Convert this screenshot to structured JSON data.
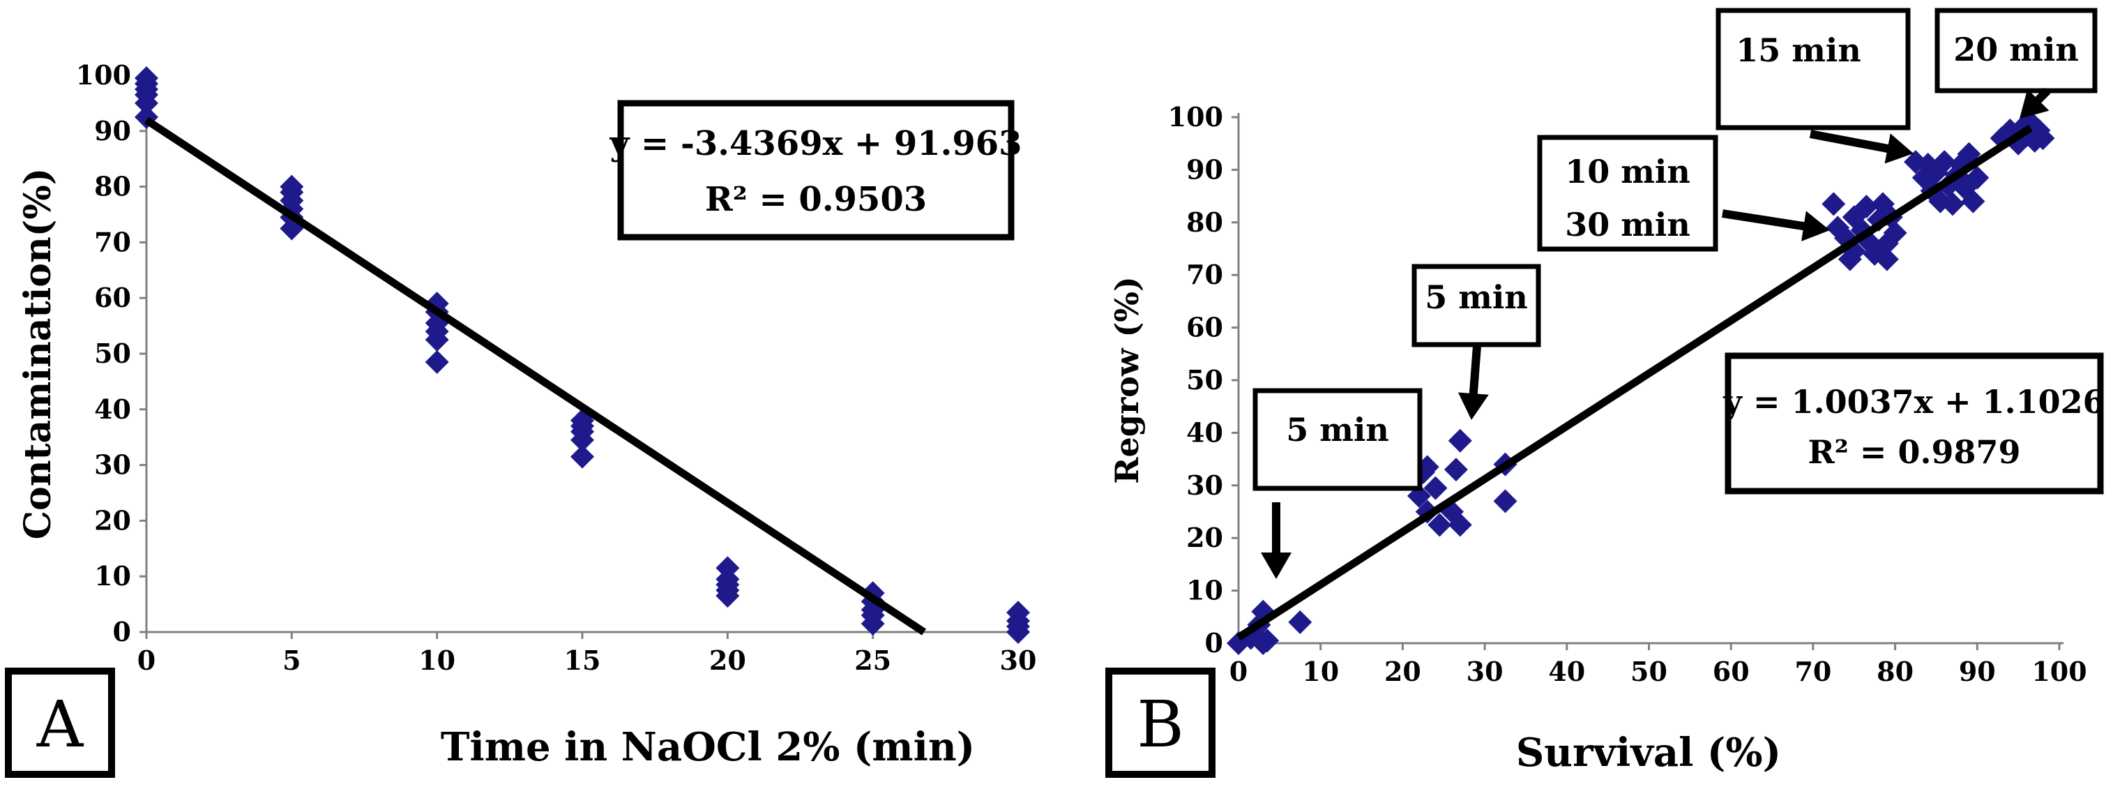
{
  "colors": {
    "marker": "#1f1a8c",
    "line": "#000000",
    "text": "#000000"
  },
  "chart_data": [
    {
      "panel": "A",
      "type": "scatter",
      "title": "",
      "xlabel": "Time in NaOCl 2% (min)",
      "ylabel": "Contamination(%)",
      "xlim": [
        0,
        30
      ],
      "ylim": [
        0,
        100
      ],
      "xticks": [
        0,
        5,
        10,
        15,
        20,
        25,
        30
      ],
      "yticks": [
        0,
        10,
        20,
        30,
        40,
        50,
        60,
        70,
        80,
        90,
        100
      ],
      "trendline": {
        "slope": -3.4369,
        "intercept": 91.963,
        "x_range": [
          0,
          26.76
        ]
      },
      "equation_box": {
        "line1": "y = -3.4369x + 91.963",
        "line2": "R² = 0.9503"
      },
      "series": [
        {
          "name": "Contamination",
          "points": [
            [
              0,
              92.5
            ],
            [
              0,
              95
            ],
            [
              0,
              96.5
            ],
            [
              0,
              97.5
            ],
            [
              0,
              98.5
            ],
            [
              0,
              99.5
            ],
            [
              5,
              72.5
            ],
            [
              5,
              74.5
            ],
            [
              5,
              76
            ],
            [
              5,
              77.5
            ],
            [
              5,
              79
            ],
            [
              5,
              80
            ],
            [
              10,
              48.5
            ],
            [
              10,
              52.5
            ],
            [
              10,
              54
            ],
            [
              10,
              55.5
            ],
            [
              10,
              57.5
            ],
            [
              10,
              59
            ],
            [
              15,
              31.5
            ],
            [
              15,
              34.5
            ],
            [
              15,
              36
            ],
            [
              15,
              37
            ],
            [
              15,
              38
            ],
            [
              20,
              6.5
            ],
            [
              20,
              7.5
            ],
            [
              20,
              8.5
            ],
            [
              20,
              9.5
            ],
            [
              20,
              11.5
            ],
            [
              25,
              1.5
            ],
            [
              25,
              3
            ],
            [
              25,
              4
            ],
            [
              25,
              5.5
            ],
            [
              25,
              7
            ],
            [
              30,
              0
            ],
            [
              30,
              1
            ],
            [
              30,
              2
            ],
            [
              30,
              3.5
            ]
          ]
        }
      ]
    },
    {
      "panel": "B",
      "type": "scatter",
      "title": "",
      "xlabel": "Survival (%)",
      "ylabel": "Regrow (%)",
      "xlim": [
        0,
        100
      ],
      "ylim": [
        0,
        100
      ],
      "xticks": [
        0,
        10,
        20,
        30,
        40,
        50,
        60,
        70,
        80,
        90,
        100
      ],
      "yticks": [
        0,
        10,
        20,
        30,
        40,
        50,
        60,
        70,
        80,
        90,
        100
      ],
      "trendline": {
        "slope": 1.0037,
        "intercept": 1.1026,
        "x_range": [
          0,
          96.5
        ]
      },
      "equation_box": {
        "line1": "y = 1.0037x + 1.1026",
        "line2": "R² = 0.9879"
      },
      "annotations": [
        {
          "text": "5 min",
          "target": [
            3,
            7
          ]
        },
        {
          "text": "5 min",
          "target": [
            27,
            41
          ]
        },
        {
          "text": "10 min\n30 min",
          "target": [
            72,
            79
          ]
        },
        {
          "text": "15 min",
          "target": [
            82,
            91
          ]
        },
        {
          "text": "20 min",
          "target": [
            96,
            98
          ]
        }
      ],
      "series": [
        {
          "name": "Regrow vs Survival",
          "points": [
            [
              0,
              0
            ],
            [
              1.5,
              1
            ],
            [
              2.5,
              3.5
            ],
            [
              3,
              6
            ],
            [
              3,
              0
            ],
            [
              3.5,
              0.5
            ],
            [
              7.5,
              4
            ],
            [
              22,
              28
            ],
            [
              22.5,
              32.5
            ],
            [
              23,
              33.5
            ],
            [
              23,
              25
            ],
            [
              24,
              29.5
            ],
            [
              24.5,
              22.5
            ],
            [
              26,
              25
            ],
            [
              26.5,
              33
            ],
            [
              27,
              38.5
            ],
            [
              27,
              22.5
            ],
            [
              32.5,
              34
            ],
            [
              32.5,
              27
            ],
            [
              72.5,
              83.5
            ],
            [
              73,
              79
            ],
            [
              74,
              77
            ],
            [
              74.5,
              73
            ],
            [
              75,
              81
            ],
            [
              75,
              74.5
            ],
            [
              76,
              78.5
            ],
            [
              76.5,
              83
            ],
            [
              77,
              76
            ],
            [
              77.5,
              74
            ],
            [
              78,
              80.5
            ],
            [
              78.5,
              83.5
            ],
            [
              79,
              76
            ],
            [
              79,
              73
            ],
            [
              79.5,
              81
            ],
            [
              80,
              78
            ],
            [
              82.5,
              91.5
            ],
            [
              83.5,
              88.5
            ],
            [
              84,
              91
            ],
            [
              84.5,
              86
            ],
            [
              85,
              89.5
            ],
            [
              85.5,
              84
            ],
            [
              86,
              91.5
            ],
            [
              86.5,
              87
            ],
            [
              87,
              83.5
            ],
            [
              87.5,
              89
            ],
            [
              88,
              91
            ],
            [
              88.5,
              86.5
            ],
            [
              89,
              93
            ],
            [
              89.5,
              84
            ],
            [
              90,
              88.5
            ],
            [
              93,
              96
            ],
            [
              94,
              97.5
            ],
            [
              95,
              95
            ],
            [
              95.5,
              98
            ],
            [
              96,
              96.5
            ],
            [
              96.5,
              99
            ],
            [
              97,
              95.5
            ],
            [
              97.5,
              97.5
            ],
            [
              98,
              96
            ]
          ]
        }
      ]
    }
  ]
}
